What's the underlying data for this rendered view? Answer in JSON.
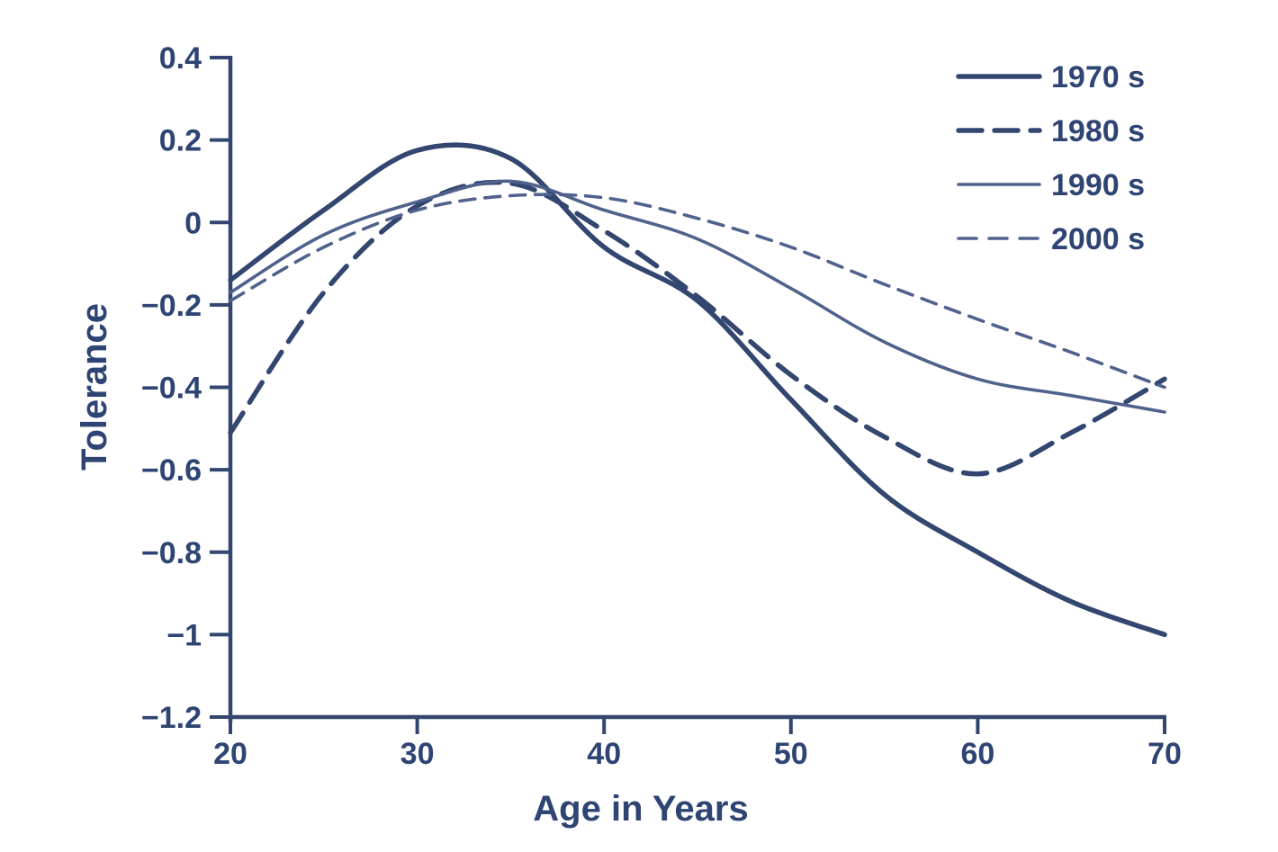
{
  "figure": {
    "background": "#ffffff",
    "text_color": "#2e4473",
    "axis_color": "#33466f"
  },
  "chart_data": {
    "type": "line",
    "title": "",
    "xlabel": "Age in Years",
    "ylabel": "Tolerance",
    "xlim": [
      20,
      70
    ],
    "ylim": [
      -1.2,
      0.4
    ],
    "grid": false,
    "legend_position": "top-right-inside",
    "x_ticks": {
      "values": [
        20,
        30,
        40,
        50,
        60,
        70
      ],
      "labels": [
        "20",
        "30",
        "40",
        "50",
        "60",
        "70"
      ]
    },
    "y_ticks": {
      "values": [
        0.4,
        0.2,
        0,
        -0.2,
        -0.4,
        -0.6,
        -0.8,
        -1,
        -1.2
      ],
      "labels": [
        "0.4",
        "0.2",
        "0",
        "−0.2",
        "−0.4",
        "−0.6",
        "−0.8",
        "−1",
        "−1.2"
      ]
    },
    "x": [
      20,
      25,
      30,
      35,
      40,
      45,
      50,
      55,
      60,
      65,
      70
    ],
    "series": [
      {
        "name": "1970s",
        "legend_label": "1970 s",
        "line_style": "solid",
        "weight": "thick",
        "color": "#33466f",
        "values": [
          -0.14,
          0.03,
          0.175,
          0.155,
          -0.06,
          -0.19,
          -0.43,
          -0.66,
          -0.8,
          -0.92,
          -1.0
        ]
      },
      {
        "name": "1980s",
        "legend_label": "1980 s",
        "line_style": "dashed",
        "weight": "thick",
        "color": "#33466f",
        "values": [
          -0.51,
          -0.17,
          0.04,
          0.095,
          -0.02,
          -0.18,
          -0.37,
          -0.52,
          -0.61,
          -0.51,
          -0.38
        ]
      },
      {
        "name": "1990s",
        "legend_label": "1990 s",
        "line_style": "solid",
        "weight": "thin",
        "color": "#50618c",
        "values": [
          -0.17,
          -0.03,
          0.05,
          0.1,
          0.03,
          -0.04,
          -0.16,
          -0.29,
          -0.38,
          -0.42,
          -0.46
        ]
      },
      {
        "name": "2000s",
        "legend_label": "2000 s",
        "line_style": "dashed",
        "weight": "thin",
        "color": "#50618c",
        "values": [
          -0.19,
          -0.06,
          0.03,
          0.065,
          0.06,
          0.01,
          -0.06,
          -0.15,
          -0.235,
          -0.315,
          -0.4
        ]
      }
    ]
  }
}
